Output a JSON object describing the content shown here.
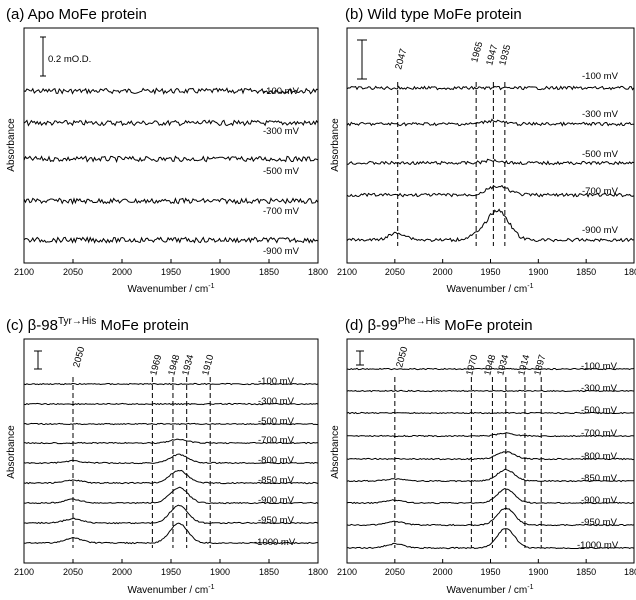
{
  "panels": [
    {
      "title_prefix": "(a) Apo MoFe protein",
      "title_superscript": "",
      "title_suffix": "",
      "xlabel": "Wavenumber / cm",
      "xlabel_superscript": "-1",
      "ylabel": "Absorbance",
      "scale_bar_label": "0.2 mO.D.",
      "voltages": [
        "-100 mV",
        "-300 mV",
        "-500 mV",
        "-700 mV",
        "-900 mV"
      ],
      "peak_lines": []
    },
    {
      "title_prefix": "(b) Wild type MoFe protein",
      "title_superscript": "",
      "title_suffix": "",
      "xlabel": "Wavenumber / cm",
      "xlabel_superscript": "-1",
      "ylabel": "Absorbance",
      "scale_bar_label": "",
      "voltages": [
        "-100 mV",
        "-300 mV",
        "-500 mV",
        "-700 mV",
        "-900 mV"
      ],
      "peak_lines": [
        "2047",
        "1965",
        "1947",
        "1935"
      ]
    },
    {
      "title_prefix": "(c) β-98",
      "title_superscript": "Tyr→His",
      "title_suffix": " MoFe protein",
      "xlabel": "Wavenumber / cm",
      "xlabel_superscript": "-1",
      "ylabel": "Absorbance",
      "scale_bar_label": "",
      "voltages": [
        "-100 mV",
        "-300 mV",
        "-500 mV",
        "-700 mV",
        "-800 mV",
        "-850 mV",
        "-900 mV",
        "-950 mV",
        "-1000 mV"
      ],
      "peak_lines": [
        "2050",
        "1969",
        "1948",
        "1934",
        "1910"
      ]
    },
    {
      "title_prefix": "(d) β-99",
      "title_superscript": "Phe→His",
      "title_suffix": " MoFe protein",
      "xlabel": "Wavenumber / cm",
      "xlabel_superscript": "-1",
      "ylabel": "Absorbance",
      "scale_bar_label": "",
      "voltages": [
        "-100 mV",
        "-300 mV",
        "-500 mV",
        "-700 mV",
        "-800 mV",
        "-850 mV",
        "-900 mV",
        "-950 mV",
        "-1000 mV"
      ],
      "peak_lines": [
        "2050",
        "1970",
        "1948",
        "1934",
        "1914",
        "1897"
      ]
    }
  ],
  "chart_data": [
    {
      "type": "line",
      "title": "(a) Apo MoFe protein",
      "xlabel": "Wavenumber / cm-1",
      "ylabel": "Absorbance",
      "xlim": [
        2100,
        1800
      ],
      "x_ticks": [
        2100,
        2050,
        2000,
        1950,
        1900,
        1850,
        1800
      ],
      "x_reversed": true,
      "series": [
        {
          "name": "-100 mV",
          "peaks": []
        },
        {
          "name": "-300 mV",
          "peaks": []
        },
        {
          "name": "-500 mV",
          "peaks": []
        },
        {
          "name": "-700 mV",
          "peaks": []
        },
        {
          "name": "-900 mV",
          "peaks": []
        }
      ],
      "peak_lines": [],
      "scale_bar": "0.2 mO.D."
    },
    {
      "type": "line",
      "title": "(b) Wild type MoFe protein",
      "xlabel": "Wavenumber / cm-1",
      "ylabel": "Absorbance",
      "xlim": [
        2100,
        1800
      ],
      "x_ticks": [
        2100,
        2050,
        2000,
        1950,
        1900,
        1850,
        1800
      ],
      "x_reversed": true,
      "series": [
        {
          "name": "-100 mV",
          "peaks": []
        },
        {
          "name": "-300 mV",
          "peaks": [
            {
              "x": 1947,
              "h": 0.25
            }
          ]
        },
        {
          "name": "-500 mV",
          "peaks": [
            {
              "x": 1947,
              "h": 0.2
            }
          ]
        },
        {
          "name": "-700 mV",
          "peaks": [
            {
              "x": 1947,
              "h": 0.45
            },
            {
              "x": 1935,
              "h": 0.3
            }
          ]
        },
        {
          "name": "-900 mV",
          "peaks": [
            {
              "x": 2047,
              "h": 0.5
            },
            {
              "x": 1965,
              "h": 0.3
            },
            {
              "x": 1947,
              "h": 1.5
            },
            {
              "x": 1935,
              "h": 1.1
            }
          ]
        }
      ],
      "peak_lines": [
        2047,
        1965,
        1947,
        1935
      ]
    },
    {
      "type": "line",
      "title": "(c) β-98Tyr→His MoFe protein",
      "xlabel": "Wavenumber / cm-1",
      "ylabel": "Absorbance",
      "xlim": [
        2100,
        1800
      ],
      "x_ticks": [
        2100,
        2050,
        2000,
        1950,
        1900,
        1850,
        1800
      ],
      "x_reversed": true,
      "series": [
        {
          "name": "-100 mV",
          "peaks": []
        },
        {
          "name": "-300 mV",
          "peaks": []
        },
        {
          "name": "-500 mV",
          "peaks": []
        },
        {
          "name": "-700 mV",
          "peaks": [
            {
              "x": 1942,
              "h": 0.25
            }
          ]
        },
        {
          "name": "-800 mV",
          "peaks": [
            {
              "x": 2050,
              "h": 0.15
            },
            {
              "x": 1942,
              "h": 0.6
            }
          ]
        },
        {
          "name": "-850 mV",
          "peaks": [
            {
              "x": 2050,
              "h": 0.2
            },
            {
              "x": 1942,
              "h": 0.9
            }
          ]
        },
        {
          "name": "-900 mV",
          "peaks": [
            {
              "x": 2050,
              "h": 0.25
            },
            {
              "x": 1942,
              "h": 1.1
            }
          ]
        },
        {
          "name": "-950 mV",
          "peaks": [
            {
              "x": 2050,
              "h": 0.3
            },
            {
              "x": 1942,
              "h": 1.25
            }
          ]
        },
        {
          "name": "-1000 mV",
          "peaks": [
            {
              "x": 2050,
              "h": 0.35
            },
            {
              "x": 1942,
              "h": 1.4
            }
          ]
        }
      ],
      "peak_lines": [
        2050,
        1969,
        1948,
        1934,
        1910
      ]
    },
    {
      "type": "line",
      "title": "(d) β-99Phe→His MoFe protein",
      "xlabel": "Wavenumber / cm-1",
      "ylabel": "Absorbance",
      "xlim": [
        2100,
        1800
      ],
      "x_ticks": [
        2100,
        2050,
        2000,
        1950,
        1900,
        1850,
        1800
      ],
      "x_reversed": true,
      "series": [
        {
          "name": "-100 mV",
          "peaks": []
        },
        {
          "name": "-300 mV",
          "peaks": []
        },
        {
          "name": "-500 mV",
          "peaks": []
        },
        {
          "name": "-700 mV",
          "peaks": [
            {
              "x": 1934,
              "h": 0.2
            }
          ]
        },
        {
          "name": "-800 mV",
          "peaks": [
            {
              "x": 1934,
              "h": 0.5
            }
          ]
        },
        {
          "name": "-850 mV",
          "peaks": [
            {
              "x": 2050,
              "h": 0.15
            },
            {
              "x": 1934,
              "h": 0.8
            }
          ]
        },
        {
          "name": "-900 mV",
          "peaks": [
            {
              "x": 2050,
              "h": 0.2
            },
            {
              "x": 1934,
              "h": 1.0
            }
          ]
        },
        {
          "name": "-950 mV",
          "peaks": [
            {
              "x": 2050,
              "h": 0.25
            },
            {
              "x": 1934,
              "h": 1.2
            }
          ]
        },
        {
          "name": "-1000 mV",
          "peaks": [
            {
              "x": 2050,
              "h": 0.3
            },
            {
              "x": 1934,
              "h": 1.4
            }
          ]
        }
      ],
      "peak_lines": [
        2050,
        1970,
        1948,
        1934,
        1914,
        1897
      ]
    }
  ]
}
